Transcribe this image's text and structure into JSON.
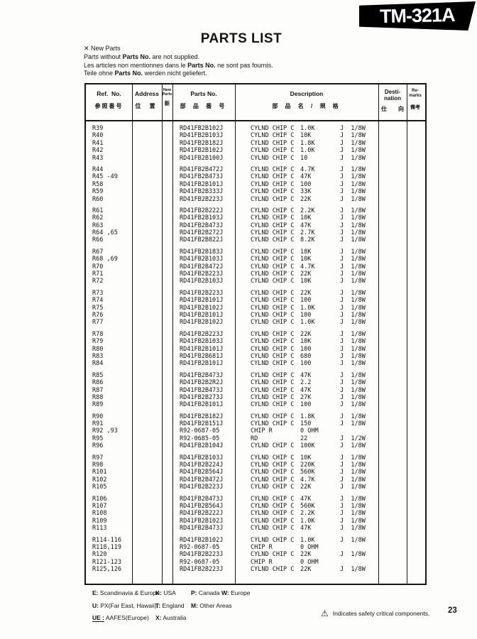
{
  "banner": {
    "model": "TM-321A"
  },
  "title": "PARTS LIST",
  "notes": {
    "new_parts_mark": "✕ New Parts",
    "lines": [
      {
        "pre": "Parts without ",
        "bold": "Parts No.",
        "post": " are not supplied."
      },
      {
        "pre": "Les articles non mentionnes dans le ",
        "bold": "Parts No.",
        "post": " ne sont pas fournis."
      },
      {
        "pre": "Teile ohne ",
        "bold": "Parts No.",
        "post": " werden nicht geliefert."
      }
    ]
  },
  "table": {
    "headers": {
      "ref": {
        "en": "Ref.  No.",
        "jp": "参照番号"
      },
      "address": {
        "en": "Address",
        "jp": "位 置"
      },
      "new_parts": {
        "en1": "New",
        "en2": "Parts",
        "jp": "新"
      },
      "parts_no": {
        "en": "Parts No.",
        "jp": "部 品 番 号"
      },
      "description": {
        "en": "Description",
        "jp": "部 品 名 / 規 格"
      },
      "destination": {
        "en1": "Desti-",
        "en2": "nation",
        "jp1": "仕",
        "jp2": "向"
      },
      "remarks": {
        "en1": "Re-",
        "en2": "marks",
        "jp": "備考"
      }
    },
    "groups": [
      [
        {
          "ref": "R39",
          "pn": "RD41FB2B102J",
          "name": "CYLND CHIP C",
          "value": "1.0K",
          "rating": "J  1/8W"
        },
        {
          "ref": "R40",
          "pn": "RD41FB2B103J",
          "name": "CYLND CHIP C",
          "value": "10K",
          "rating": "J  1/8W"
        },
        {
          "ref": "R41",
          "pn": "RD41FB2B182J",
          "name": "CYLND CHIP C",
          "value": "1.8K",
          "rating": "J  1/8W"
        },
        {
          "ref": "R42",
          "pn": "RD41FB2B102J",
          "name": "CYLND CHIP C",
          "value": "1.0K",
          "rating": "J  1/8W"
        },
        {
          "ref": "R43",
          "pn": "RD41FB2B100J",
          "name": "CYLND CHIP C",
          "value": "10",
          "rating": "J  1/8W"
        }
      ],
      [
        {
          "ref": "R44",
          "pn": "RD41FB2B472J",
          "name": "CYLND CHIP C",
          "value": "4.7K",
          "rating": "J  1/8W"
        },
        {
          "ref": "R45 -49",
          "pn": "RD41FB2B473J",
          "name": "CYLND CHIP C",
          "value": "47K",
          "rating": "J  1/8W"
        },
        {
          "ref": "R58",
          "pn": "RD41FB2B101J",
          "name": "CYLND CHIP C",
          "value": "100",
          "rating": "J  1/8W"
        },
        {
          "ref": "R59",
          "pn": "RD41FB2B333J",
          "name": "CYLND CHIP C",
          "value": "33K",
          "rating": "J  1/8W"
        },
        {
          "ref": "R60",
          "pn": "RD41FB2B223J",
          "name": "CYLND CHIP C",
          "value": "22K",
          "rating": "J  1/8W"
        }
      ],
      [
        {
          "ref": "R61",
          "pn": "RD41FB2B222J",
          "name": "CYLND CHIP C",
          "value": "2.2K",
          "rating": "J  1/8W"
        },
        {
          "ref": "R62",
          "pn": "RD41FB2B103J",
          "name": "CYLND CHIP C",
          "value": "10K",
          "rating": "J  1/8W"
        },
        {
          "ref": "R63",
          "pn": "RD41FB2B473J",
          "name": "CYLND CHIP C",
          "value": "47K",
          "rating": "J  1/8W"
        },
        {
          "ref": "R64 ,65",
          "pn": "RD41FB2B272J",
          "name": "CYLND CHIP C",
          "value": "2.7K",
          "rating": "J  1/8W"
        },
        {
          "ref": "R66",
          "pn": "RD41FB2B822J",
          "name": "CYLND CHIP C",
          "value": "8.2K",
          "rating": "J  1/8W"
        }
      ],
      [
        {
          "ref": "R67",
          "pn": "RD41FB2B183J",
          "name": "CYLND CHIP C",
          "value": "18K",
          "rating": "J  1/8W"
        },
        {
          "ref": "R68 ,69",
          "pn": "RD41FB2B103J",
          "name": "CYLND CHIP C",
          "value": "10K",
          "rating": "J  1/8W"
        },
        {
          "ref": "R70",
          "pn": "RD41FB2B472J",
          "name": "CYLND CHIP C",
          "value": "4.7K",
          "rating": "J  1/8W"
        },
        {
          "ref": "R71",
          "pn": "RD41FB2B223J",
          "name": "CYLND CHIP C",
          "value": "22K",
          "rating": "J  1/8W"
        },
        {
          "ref": "R72",
          "pn": "RD41FB2B103J",
          "name": "CYLND CHIP C",
          "value": "10K",
          "rating": "J  1/8W"
        }
      ],
      [
        {
          "ref": "R73",
          "pn": "RD41FB2B223J",
          "name": "CYLND CHIP C",
          "value": "22K",
          "rating": "J  1/8W"
        },
        {
          "ref": "R74",
          "pn": "RD41FB2B101J",
          "name": "CYLND CHIP C",
          "value": "100",
          "rating": "J  1/8W"
        },
        {
          "ref": "R75",
          "pn": "RD41FB2B102J",
          "name": "CYLND CHIP C",
          "value": "1.0K",
          "rating": "J  1/8W"
        },
        {
          "ref": "R76",
          "pn": "RD41FB2B101J",
          "name": "CYLND CHIP C",
          "value": "100",
          "rating": "J  1/8W"
        },
        {
          "ref": "R77",
          "pn": "RD41FB2B102J",
          "name": "CYLND CHIP C",
          "value": "1.0K",
          "rating": "J  1/8W"
        }
      ],
      [
        {
          "ref": "R78",
          "pn": "RD41FB2B223J",
          "name": "CYLND CHIP C",
          "value": "22K",
          "rating": "J  1/8W"
        },
        {
          "ref": "R79",
          "pn": "RD41FB2B103J",
          "name": "CYLND CHIP C",
          "value": "10K",
          "rating": "J  1/8W"
        },
        {
          "ref": "R80",
          "pn": "RD41FB2B101J",
          "name": "CYLND CHIP C",
          "value": "100",
          "rating": "J  1/8W"
        },
        {
          "ref": "R83",
          "pn": "RD41FB2B681J",
          "name": "CYLND CHIP C",
          "value": "680",
          "rating": "J  1/8W"
        },
        {
          "ref": "R84",
          "pn": "RD41FB2B101J",
          "name": "CYLND CHIP C",
          "value": "100",
          "rating": "J  1/8W"
        }
      ],
      [
        {
          "ref": "R85",
          "pn": "RD41FB2B473J",
          "name": "CYLND CHIP C",
          "value": "47K",
          "rating": "J  1/8W"
        },
        {
          "ref": "R86",
          "pn": "RD41FB2B2R2J",
          "name": "CYLND CHIP C",
          "value": "2.2",
          "rating": "J  1/8W"
        },
        {
          "ref": "R87",
          "pn": "RD41FB2B473J",
          "name": "CYLND CHIP C",
          "value": "47K",
          "rating": "J  1/8W"
        },
        {
          "ref": "R88",
          "pn": "RD41FB2B273J",
          "name": "CYLND CHIP C",
          "value": "27K",
          "rating": "J  1/8W"
        },
        {
          "ref": "R89",
          "pn": "RD41FB2B101J",
          "name": "CYLND CHIP C",
          "value": "100",
          "rating": "J  1/8W"
        }
      ],
      [
        {
          "ref": "R90",
          "pn": "RD41FB2B182J",
          "name": "CYLND CHIP C",
          "value": "1.8K",
          "rating": "J  1/8W"
        },
        {
          "ref": "R91",
          "pn": "RD41FB2B151J",
          "name": "CYLND CHIP C",
          "value": "150",
          "rating": "J  1/8W"
        },
        {
          "ref": "R92 ,93",
          "pn": "R92-0687-05",
          "name": "CHIP R",
          "value": "0 OHM",
          "rating": ""
        },
        {
          "ref": "R95",
          "pn": "R92-0685-05",
          "name": "RD",
          "value": "22",
          "rating": "J  1/2W"
        },
        {
          "ref": "R96",
          "pn": "RD41FB2B104J",
          "name": "CYLND CHIP C",
          "value": "100K",
          "rating": "J  1/8W"
        }
      ],
      [
        {
          "ref": "R97",
          "pn": "RD41FB2B103J",
          "name": "CYLND CHIP C",
          "value": "10K",
          "rating": "J  1/8W"
        },
        {
          "ref": "R98",
          "pn": "RD41FB2B224J",
          "name": "CYLND CHIP C",
          "value": "220K",
          "rating": "J  1/8W"
        },
        {
          "ref": "R101",
          "pn": "RD41FB2B564J",
          "name": "CYLND CHIP C",
          "value": "560K",
          "rating": "J  1/8W"
        },
        {
          "ref": "R102",
          "pn": "RD41FB2B472J",
          "name": "CYLND CHIP C",
          "value": "4.7K",
          "rating": "J  1/8W"
        },
        {
          "ref": "R105",
          "pn": "RD41FB2B223J",
          "name": "CYLND CHIP C",
          "value": "22K",
          "rating": "J  1/8W"
        }
      ],
      [
        {
          "ref": "R106",
          "pn": "RD41FB2B473J",
          "name": "CYLND CHIP C",
          "value": "47K",
          "rating": "J  1/8W"
        },
        {
          "ref": "R107",
          "pn": "RD41FB2B564J",
          "name": "CYLND CHIP C",
          "value": "560K",
          "rating": "J  1/8W"
        },
        {
          "ref": "R108",
          "pn": "RD41FB2B222J",
          "name": "CYLND CHIP C",
          "value": "2.2K",
          "rating": "J  1/8W"
        },
        {
          "ref": "R109",
          "pn": "RD41FB2B102J",
          "name": "CYLND CHIP C",
          "value": "1.0K",
          "rating": "J  1/8W"
        },
        {
          "ref": "R113",
          "pn": "RD41FB2B473J",
          "name": "CYLND CHIP C",
          "value": "47K",
          "rating": "J  1/8W"
        }
      ],
      [
        {
          "ref": "R114-116",
          "pn": "RD41FB2B102J",
          "name": "CYLND CHIP C",
          "value": "1.0K",
          "rating": "J  1/8W"
        },
        {
          "ref": "R118,119",
          "pn": "R92-0687-05",
          "name": "CHIP R",
          "value": "0 OHM",
          "rating": ""
        },
        {
          "ref": "R120",
          "pn": "RD41FB2B223J",
          "name": "CYLND CHIP C",
          "value": "22K",
          "rating": "J  1/8W"
        },
        {
          "ref": "R121-123",
          "pn": "R92-0687-05",
          "name": "CHIP R",
          "value": "0 OHM",
          "rating": ""
        },
        {
          "ref": "R125,126",
          "pn": "RD41FB2B223J",
          "name": "CYLND CHIP C",
          "value": "22K",
          "rating": "J  1/8W"
        }
      ]
    ]
  },
  "footer": {
    "legend": [
      [
        {
          "code": "E:",
          "area": "Scandinavia & Europe"
        },
        {
          "code": "K:",
          "area": "USA"
        },
        {
          "code": "P:",
          "area": "Canada"
        },
        {
          "code": "W:",
          "area": "Europe"
        }
      ],
      [
        {
          "code": "U:",
          "area": "PX(Far East, Hawaii)"
        },
        {
          "code": "T:",
          "area": "England"
        },
        {
          "code": "M:",
          "area": "Other Areas"
        }
      ],
      [
        {
          "code": "UE :",
          "area": "AAFES(Europe)",
          "underline": true
        },
        {
          "code": "X:",
          "area": "Australia"
        }
      ]
    ],
    "safety_icon": "⚠",
    "safety_text": "Indicates safety critical components.",
    "page_number": "23"
  }
}
